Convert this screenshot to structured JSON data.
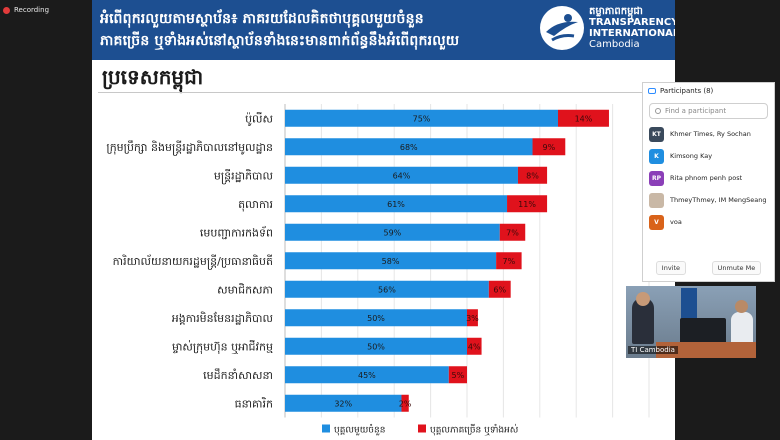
{
  "recording": {
    "label": "Recording"
  },
  "slide": {
    "header_title_line1": "អំពើពុករលួយតាមស្ថាប័ន៖ ភាគរយដែលគិតថាបុគ្គលមួយចំនួន",
    "header_title_line2": "ភាគច្រើន ឬទាំងអស់នៅស្ថាប័នទាំងនេះមានពាក់ព័ន្ធនឹងអំពើពុករលួយ",
    "logo_line1": "តម្លាភាពកម្ពុជា",
    "logo_line2": "TRANSPARENCY",
    "logo_line3": "INTERNATIONAL",
    "logo_line4": "Cambodia",
    "subtitle": "ប្រទេសកម្ពុជា",
    "colors": {
      "header": "#1d4f91",
      "blue_bar": "#1f8ee0",
      "red_bar": "#e0121c"
    }
  },
  "chart_data": {
    "type": "bar",
    "orientation": "horizontal",
    "stacked": true,
    "categories": [
      "ប៉ូលីស",
      "ក្រុមប្រឹក្សា និងមន្ត្រីរដ្ឋាភិបាលនៅមូលដ្ឋាន",
      "មន្ត្រីរដ្ឋាភិបាល",
      "តុលាការ",
      "មេបញ្ជាការកងទ័ព",
      "ការិយាល័យនាយករដ្ឋមន្ត្រី/ប្រធានាធិបតី",
      "សមាជិកសភា",
      "អង្គការមិនមែនរដ្ឋាភិបាល",
      "ម្ចាស់ក្រុមហ៊ុន ឬអាជីវកម្ម",
      "មេដឹកនាំសាសនា",
      "ធនាគារិក"
    ],
    "series": [
      {
        "name": "បុគ្គលមួយចំនួន",
        "color": "#1f8ee0",
        "values": [
          75,
          68,
          64,
          61,
          59,
          58,
          56,
          50,
          50,
          45,
          32
        ],
        "labels": [
          "75%",
          "68%",
          "64%",
          "61%",
          "59%",
          "58%",
          "56%",
          "50%",
          "50%",
          "45%",
          "32%"
        ]
      },
      {
        "name": "បុគ្គលភាគច្រើន ឬទាំងអស់",
        "color": "#e0121c",
        "values": [
          14,
          9,
          8,
          11,
          7,
          7,
          6,
          3,
          4,
          5,
          2
        ],
        "labels": [
          "14%",
          "9%",
          "8%",
          "11%",
          "7%",
          "7%",
          "6%",
          "3%",
          "4%",
          "5%",
          "2%"
        ]
      }
    ],
    "xlim": [
      0,
      100
    ],
    "grid": true,
    "legend_position": "bottom"
  },
  "zoom": {
    "panel_title": "Participants (8)",
    "search_placeholder": "Find a participant",
    "participants": [
      {
        "initials": "KT",
        "name": "Khmer Times, Ry Sochan",
        "color": "#3a4a5c"
      },
      {
        "initials": "K",
        "name": "Kimsong Kay",
        "color": "#1f8ee0"
      },
      {
        "initials": "RP",
        "name": "Rita phnom penh post",
        "color": "#8b3fb8"
      },
      {
        "initials": "",
        "name": "ThmeyThmey, IM MengSeang",
        "color": "#c9b8a6"
      },
      {
        "initials": "V",
        "name": "voa",
        "color": "#d9631a"
      }
    ],
    "invite_label": "Invite",
    "unmute_label": "Unmute Me",
    "video_label": "TI Cambodia"
  }
}
